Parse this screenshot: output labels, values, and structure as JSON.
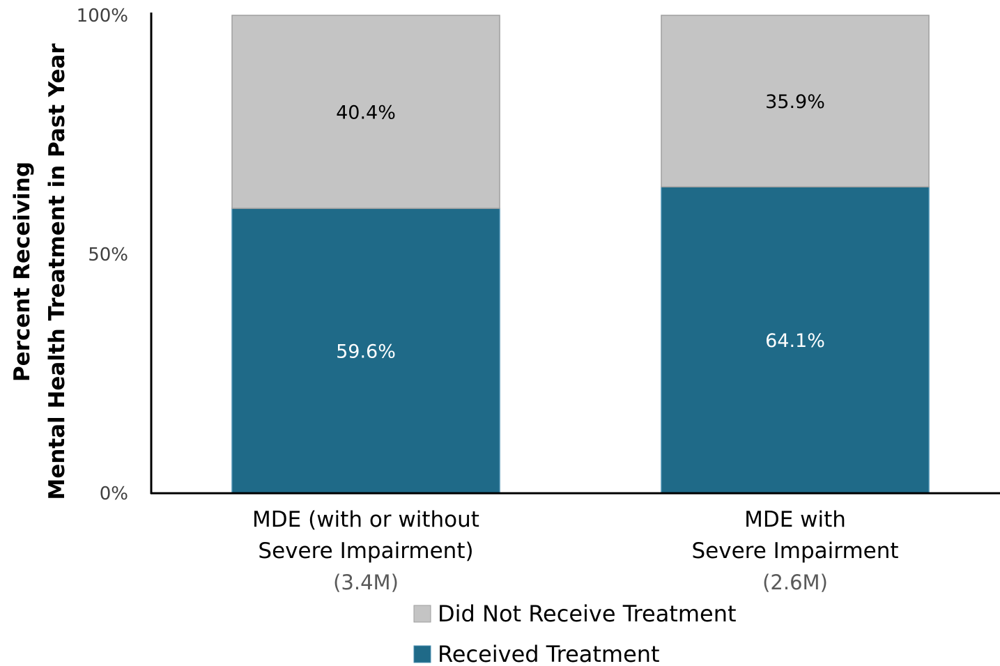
{
  "chart_data": {
    "type": "bar",
    "stacked": true,
    "categories": [
      "MDE (with or without|Severe Impairment)",
      "MDE with|Severe Impairment"
    ],
    "category_lines": [
      [
        "MDE (with or without",
        "Severe Impairment)"
      ],
      [
        "MDE with",
        "Severe Impairment"
      ]
    ],
    "category_sublabels": [
      "(3.4M)",
      "(2.6M)"
    ],
    "series": [
      {
        "name": "Received Treatment",
        "values": [
          59.6,
          64.1
        ],
        "labels": [
          "59.6%",
          "64.1%"
        ],
        "color": "#1f6a88",
        "label_color": "#ffffff"
      },
      {
        "name": "Did Not Receive Treatment",
        "values": [
          40.4,
          35.9
        ],
        "labels": [
          "40.4%",
          "35.9%"
        ],
        "color": "#c4c4c4",
        "label_color": "#000000"
      }
    ],
    "ylabel_lines": [
      "Percent Receiving",
      "Mental Health Treatment in Past Year"
    ],
    "ylim": [
      0,
      100
    ],
    "yticks": [
      0,
      50,
      100
    ],
    "ytick_labels": [
      "0%",
      "50%",
      "100%"
    ],
    "legend": {
      "position": "bottom",
      "order": [
        "Did Not Receive Treatment",
        "Received Treatment"
      ]
    },
    "grid": false
  }
}
